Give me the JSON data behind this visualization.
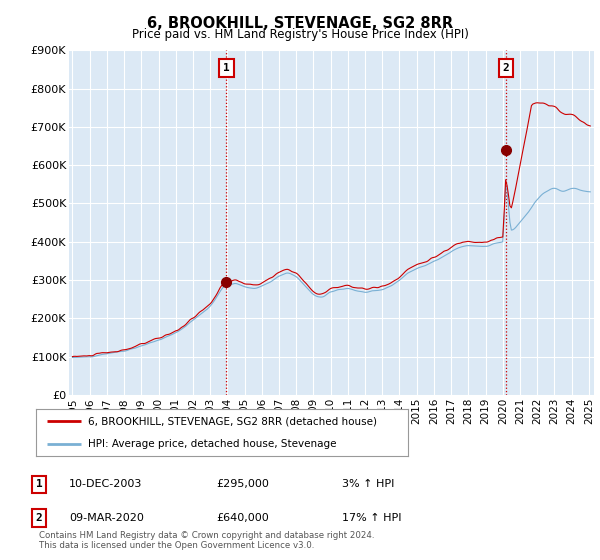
{
  "title": "6, BROOKHILL, STEVENAGE, SG2 8RR",
  "subtitle": "Price paid vs. HM Land Registry's House Price Index (HPI)",
  "ylabel_values": [
    "£0",
    "£100K",
    "£200K",
    "£300K",
    "£400K",
    "£500K",
    "£600K",
    "£700K",
    "£800K",
    "£900K"
  ],
  "ylim": [
    0,
    900000
  ],
  "yticks": [
    0,
    100000,
    200000,
    300000,
    400000,
    500000,
    600000,
    700000,
    800000,
    900000
  ],
  "xlim_start": 1994.8,
  "xlim_end": 2025.3,
  "background_color": "#dce9f5",
  "grid_color": "#ffffff",
  "legend_entries": [
    "6, BROOKHILL, STEVENAGE, SG2 8RR (detached house)",
    "HPI: Average price, detached house, Stevenage"
  ],
  "line_color_red": "#cc0000",
  "line_color_blue": "#7ab0d4",
  "transaction1_x": 2003.94,
  "transaction1_y": 295000,
  "transaction1_label": "1",
  "transaction1_date": "10-DEC-2003",
  "transaction1_price": "£295,000",
  "transaction1_hpi": "3% ↑ HPI",
  "transaction2_x": 2020.18,
  "transaction2_y": 640000,
  "transaction2_label": "2",
  "transaction2_date": "09-MAR-2020",
  "transaction2_price": "£640,000",
  "transaction2_hpi": "17% ↑ HPI",
  "vline_color": "#cc0000",
  "copyright_text": "Contains HM Land Registry data © Crown copyright and database right 2024.\nThis data is licensed under the Open Government Licence v3.0.",
  "xtick_years": [
    1995,
    1996,
    1997,
    1998,
    1999,
    2000,
    2001,
    2002,
    2003,
    2004,
    2005,
    2006,
    2007,
    2008,
    2009,
    2010,
    2011,
    2012,
    2013,
    2014,
    2015,
    2016,
    2017,
    2018,
    2019,
    2020,
    2021,
    2022,
    2023,
    2024,
    2025
  ]
}
